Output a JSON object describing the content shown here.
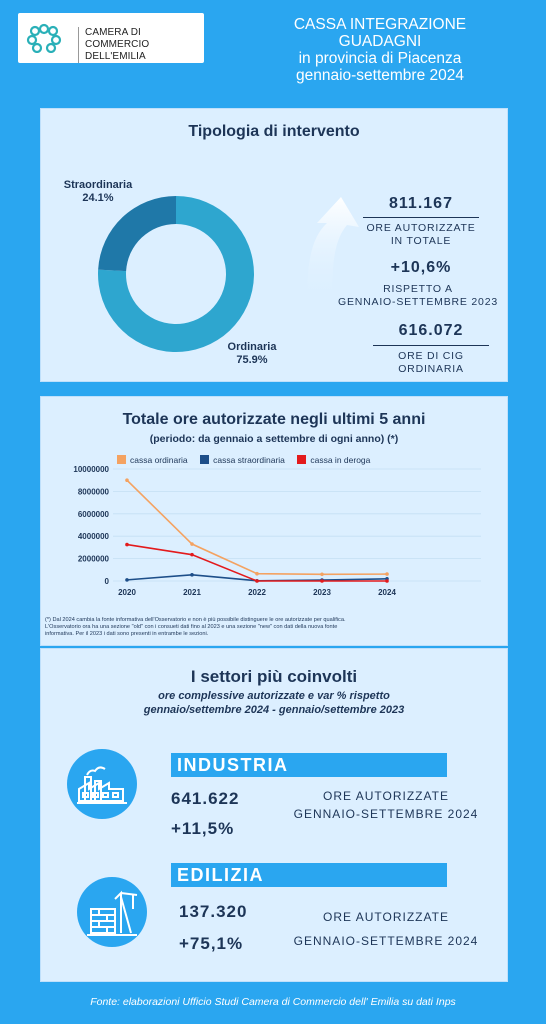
{
  "header": {
    "logo_line1": "CAMERA DI COMMERCIO",
    "logo_line2": "DELL'EMILIA",
    "title_lines": [
      "CASSA INTEGRAZIONE",
      "GUADAGNI",
      "in provincia di Piacenza",
      "gennaio-settembre 2024"
    ]
  },
  "colors": {
    "background": "#2aa6f0",
    "panel": "#dcefff",
    "ordinaria": "#2ea6cf",
    "straordinaria": "#1f78a8",
    "deroga": "#e31a1c",
    "line_ordinaria": "#f4a261",
    "line_straordinaria": "#1d4e89"
  },
  "tipologia": {
    "title": "Tipologia di intervento",
    "straordinaria_label": "Straordinaria",
    "straordinaria_pct": "24.1%",
    "ordinaria_label": "Ordinaria",
    "ordinaria_pct": "75.9%",
    "total_value": "811.167",
    "total_caption_l1": "ORE AUTORIZZATE",
    "total_caption_l2": "IN TOTALE",
    "change_value": "+10,6%",
    "change_caption_l1": "RISPETTO A",
    "change_caption_l2": "GENNAIO-SETTEMBRE 2023",
    "cig_value": "616.072",
    "cig_caption_l1": "ORE DI CIG",
    "cig_caption_l2": "ORDINARIA"
  },
  "chart_data": [
    {
      "type": "pie",
      "categories": [
        "Ordinaria",
        "Straordinaria"
      ],
      "values": [
        75.9,
        24.1
      ]
    },
    {
      "type": "line",
      "title": "Totale ore autorizzate negli ultimi 5 anni",
      "subtitle": "(periodo: da gennaio a settembre di ogni anno) (*)",
      "categories": [
        "2020",
        "2021",
        "2022",
        "2023",
        "2024"
      ],
      "series": [
        {
          "name": "cassa ordinaria",
          "values": [
            9000000,
            3300000,
            650000,
            600000,
            616072
          ]
        },
        {
          "name": "cassa straordinaria",
          "values": [
            100000,
            550000,
            20000,
            80000,
            195000
          ]
        },
        {
          "name": "cassa in deroga",
          "values": [
            3250000,
            2350000,
            0,
            0,
            0
          ]
        }
      ],
      "ylim": [
        0,
        10000000
      ],
      "yticks": [
        "10000000",
        "8000000",
        "6000000",
        "4000000",
        "2000000",
        "0"
      ],
      "grid": true,
      "legend": "top",
      "footnote_lines": [
        "(*) Dal 2024 cambia la fonte informativa dell'Osservatorio e non è più possibile distinguere le ore autorizzate per qualifica.",
        "L'Osservatorio ora ha una sezione \"old\" con i consueti dati fino al 2023 e una sezione \"new\" con dati della nuova fonte",
        "informativa. Per il 2023 i dati sono presenti in entrambe le sezioni."
      ]
    }
  ],
  "settori": {
    "title": "I settori più coinvolti",
    "subtitle_l1": "ore complessive autorizzate e var % rispetto",
    "subtitle_l2": "gennaio/settembre 2024 - gennaio/settembre 2023",
    "industria": {
      "label": "INDUSTRIA",
      "value": "641.622",
      "change": "+11,5%",
      "caption_l1": "ORE AUTORIZZATE",
      "caption_l2": "GENNAIO-SETTEMBRE 2024",
      "icon": "factory-icon"
    },
    "edilizia": {
      "label": "EDILIZIA",
      "value": "137.320",
      "change": "+75,1%",
      "caption_l1": "ORE AUTORIZZATE",
      "caption_l2": "GENNAIO-SETTEMBRE 2024",
      "icon": "construction-icon"
    }
  },
  "footer": {
    "source": "Fonte: elaborazioni Ufficio Studi Camera di Commercio dell' Emilia su dati Inps"
  }
}
